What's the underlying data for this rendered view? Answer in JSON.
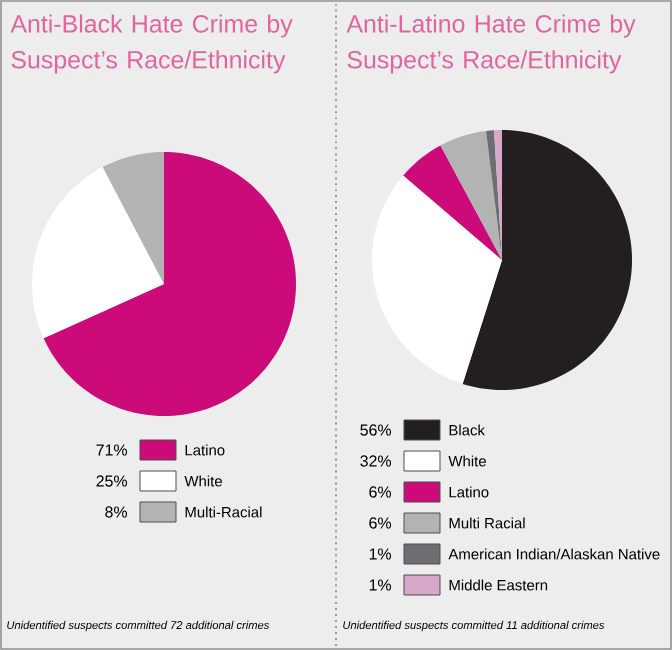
{
  "chart_data": [
    {
      "type": "pie",
      "title": "Anti-Black Hate Crime by Suspect’s Race/Ethnicity",
      "categories": [
        "Latino",
        "White",
        "Multi-Racial"
      ],
      "values": [
        71,
        25,
        8
      ],
      "value_labels": [
        "71%",
        "25%",
        "8%"
      ],
      "colors": [
        "#cc0a7a",
        "#ffffff",
        "#b3b3b3"
      ],
      "legend": "bottom",
      "annotations": [
        "Unidentified suspects committed 72 additional crimes"
      ]
    },
    {
      "type": "pie",
      "title": "Anti-Latino Hate Crime by Suspect’s Race/Ethnicity",
      "categories": [
        "Black",
        "White",
        "Latino",
        "Multi Racial",
        "American Indian/Alaskan Native",
        "Middle Eastern"
      ],
      "values": [
        56,
        32,
        6,
        6,
        1,
        1
      ],
      "value_labels": [
        "56%",
        "32%",
        "6%",
        "6%",
        "1%",
        "1%"
      ],
      "colors": [
        "#231f20",
        "#ffffff",
        "#cc0a7a",
        "#b3b3b3",
        "#6d6e71",
        "#d8a8c8"
      ],
      "legend": "bottom",
      "annotations": [
        "Unidentified suspects committed 11 additional crimes"
      ]
    }
  ]
}
